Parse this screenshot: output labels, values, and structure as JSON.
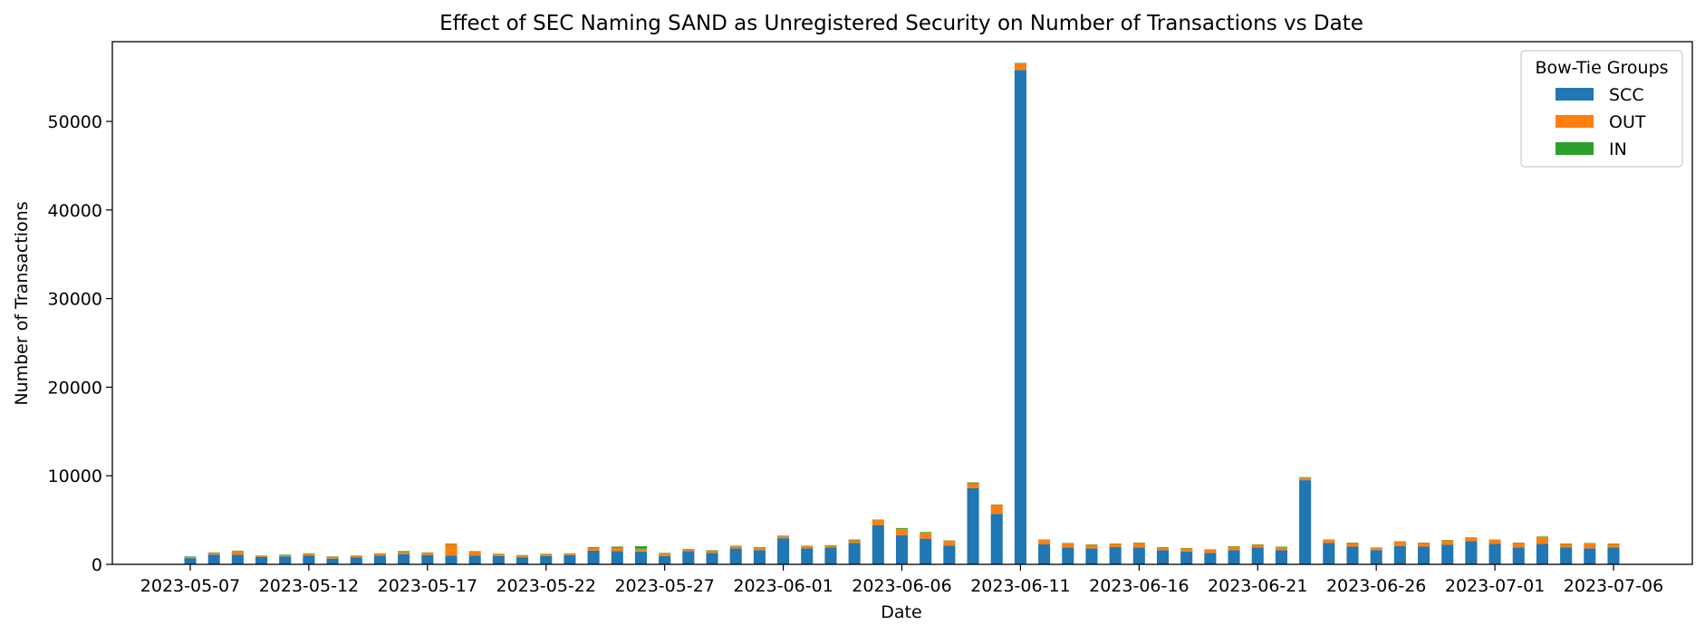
{
  "chart_data": {
    "type": "bar",
    "stacked": true,
    "title": "Effect of SEC Naming SAND as Unregistered Security on Number of Transactions vs Date",
    "xlabel": "Date",
    "ylabel": "Number of Transactions",
    "ylim": [
      0,
      59000
    ],
    "yticks": [
      0,
      10000,
      20000,
      30000,
      40000,
      50000
    ],
    "xticks": [
      "2023-05-07",
      "2023-05-12",
      "2023-05-17",
      "2023-05-22",
      "2023-05-27",
      "2023-06-01",
      "2023-06-06",
      "2023-06-11",
      "2023-06-16",
      "2023-06-21",
      "2023-06-26",
      "2023-07-01",
      "2023-07-06"
    ],
    "grid": false,
    "legend": {
      "title": "Bow-Tie Groups",
      "placement": "top-right"
    },
    "categories": [
      "2023-05-07",
      "2023-05-08",
      "2023-05-09",
      "2023-05-10",
      "2023-05-11",
      "2023-05-12",
      "2023-05-13",
      "2023-05-14",
      "2023-05-15",
      "2023-05-16",
      "2023-05-17",
      "2023-05-18",
      "2023-05-19",
      "2023-05-20",
      "2023-05-21",
      "2023-05-22",
      "2023-05-23",
      "2023-05-24",
      "2023-05-25",
      "2023-05-26",
      "2023-05-27",
      "2023-05-28",
      "2023-05-29",
      "2023-05-30",
      "2023-05-31",
      "2023-06-01",
      "2023-06-02",
      "2023-06-03",
      "2023-06-04",
      "2023-06-05",
      "2023-06-06",
      "2023-06-07",
      "2023-06-08",
      "2023-06-09",
      "2023-06-10",
      "2023-06-11",
      "2023-06-12",
      "2023-06-13",
      "2023-06-14",
      "2023-06-15",
      "2023-06-16",
      "2023-06-17",
      "2023-06-18",
      "2023-06-19",
      "2023-06-20",
      "2023-06-21",
      "2023-06-22",
      "2023-06-23",
      "2023-06-24",
      "2023-06-25",
      "2023-06-26",
      "2023-06-27",
      "2023-06-28",
      "2023-06-29",
      "2023-06-30",
      "2023-07-01",
      "2023-07-02",
      "2023-07-03",
      "2023-07-04",
      "2023-07-05",
      "2023-07-06"
    ],
    "series": [
      {
        "name": "SCC",
        "color": "#1f77b4",
        "values": [
          700,
          1100,
          1100,
          850,
          900,
          1000,
          650,
          800,
          1000,
          1150,
          1050,
          1000,
          1000,
          950,
          800,
          950,
          1050,
          1550,
          1500,
          1450,
          950,
          1500,
          1300,
          1800,
          1600,
          2950,
          1800,
          1900,
          2400,
          4400,
          3300,
          2900,
          2100,
          8600,
          5700,
          55800,
          2250,
          1900,
          1800,
          1950,
          1900,
          1600,
          1450,
          1300,
          1600,
          1900,
          1600,
          9500,
          2400,
          2000,
          1600,
          2050,
          2000,
          2200,
          2600,
          2300,
          1900,
          2300,
          1900,
          1800,
          1900
        ]
      },
      {
        "name": "OUT",
        "color": "#ff7f0e",
        "values": [
          150,
          200,
          400,
          100,
          150,
          200,
          200,
          150,
          200,
          250,
          250,
          1300,
          450,
          200,
          200,
          200,
          150,
          300,
          350,
          300,
          300,
          200,
          250,
          250,
          300,
          250,
          250,
          200,
          300,
          600,
          700,
          650,
          550,
          550,
          1000,
          750,
          500,
          450,
          400,
          350,
          500,
          300,
          350,
          350,
          400,
          300,
          350,
          300,
          350,
          400,
          250,
          500,
          400,
          500,
          400,
          450,
          500,
          800,
          400,
          550,
          400
        ]
      },
      {
        "name": "IN",
        "color": "#2ca02c",
        "values": [
          50,
          50,
          50,
          50,
          50,
          50,
          50,
          50,
          50,
          100,
          50,
          50,
          50,
          50,
          50,
          50,
          50,
          100,
          150,
          300,
          50,
          50,
          50,
          50,
          50,
          50,
          50,
          50,
          100,
          50,
          100,
          100,
          50,
          100,
          50,
          50,
          50,
          50,
          50,
          50,
          50,
          50,
          50,
          50,
          50,
          50,
          50,
          50,
          50,
          50,
          50,
          50,
          50,
          50,
          50,
          50,
          50,
          50,
          50,
          50,
          50
        ]
      }
    ]
  }
}
